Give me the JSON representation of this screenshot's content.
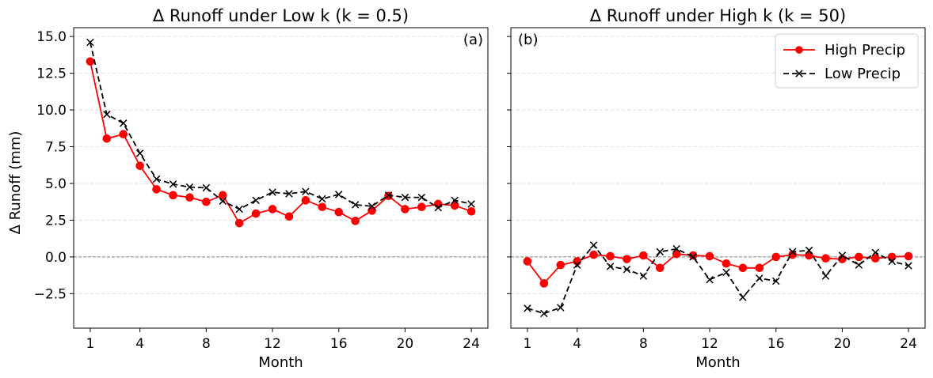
{
  "figure": {
    "shared_ylabel": "Δ Runoff (mm)"
  },
  "chart_data": [
    {
      "type": "line",
      "title": "Δ Runoff under Low k (k = 0.5)",
      "panel_label": "(a)",
      "xlabel": "Month",
      "ylabel": "Δ Runoff (mm)",
      "x": [
        1,
        2,
        3,
        4,
        5,
        6,
        7,
        8,
        9,
        10,
        11,
        12,
        13,
        14,
        15,
        16,
        17,
        18,
        19,
        20,
        21,
        22,
        23,
        24
      ],
      "xticks": [
        1,
        4,
        8,
        12,
        16,
        20,
        24
      ],
      "yticks": [
        -2.5,
        0.0,
        2.5,
        5.0,
        7.5,
        10.0,
        12.5,
        15.0
      ],
      "ytick_labels": [
        "−2.5",
        "0.0",
        "2.5",
        "5.0",
        "7.5",
        "10.0",
        "12.5",
        "15.0"
      ],
      "xlim": [
        0.0,
        25.0
      ],
      "ylim": [
        -4.85,
        15.6
      ],
      "grid": "y, dashed",
      "zero_line": true,
      "legend": null,
      "series": [
        {
          "name": "High Precip",
          "color": "#ff0000",
          "line_style": "solid",
          "marker": "circle",
          "values": [
            13.3,
            8.05,
            8.35,
            6.2,
            4.6,
            4.2,
            4.05,
            3.75,
            4.2,
            2.3,
            2.95,
            3.25,
            2.75,
            3.85,
            3.4,
            3.05,
            2.45,
            3.15,
            4.15,
            3.25,
            3.4,
            3.6,
            3.5,
            3.1
          ]
        },
        {
          "name": "Low Precip",
          "color": "#000000",
          "line_style": "dashed",
          "marker": "x",
          "values": [
            14.6,
            9.7,
            9.1,
            7.05,
            5.3,
            4.95,
            4.75,
            4.7,
            3.8,
            3.25,
            3.85,
            4.4,
            4.3,
            4.45,
            3.95,
            4.25,
            3.55,
            3.45,
            4.2,
            4.05,
            4.05,
            3.35,
            3.85,
            3.6
          ]
        }
      ]
    },
    {
      "type": "line",
      "title": "Δ Runoff under High k (k = 50)",
      "panel_label": "(b)",
      "xlabel": "Month",
      "ylabel": "",
      "x": [
        1,
        2,
        3,
        4,
        5,
        6,
        7,
        8,
        9,
        10,
        11,
        12,
        13,
        14,
        15,
        16,
        17,
        18,
        19,
        20,
        21,
        22,
        23,
        24
      ],
      "xticks": [
        1,
        4,
        8,
        12,
        16,
        20,
        24
      ],
      "yticks": [
        -2.5,
        0.0,
        2.5,
        5.0,
        7.5,
        10.0,
        12.5,
        15.0
      ],
      "ytick_labels": [],
      "xlim": [
        0.0,
        25.0
      ],
      "ylim": [
        -4.85,
        15.6
      ],
      "grid": "y, dashed",
      "zero_line": true,
      "legend": "top-right",
      "series": [
        {
          "name": "High Precip",
          "color": "#ff0000",
          "line_style": "solid",
          "marker": "circle",
          "values": [
            -0.3,
            -1.8,
            -0.55,
            -0.3,
            0.15,
            0.05,
            -0.15,
            0.1,
            -0.75,
            0.2,
            0.1,
            0.05,
            -0.45,
            -0.75,
            -0.75,
            0.0,
            0.15,
            0.1,
            -0.1,
            -0.15,
            0.0,
            -0.1,
            0.0,
            0.05
          ]
        },
        {
          "name": "Low Precip",
          "color": "#000000",
          "line_style": "dashed",
          "marker": "x",
          "values": [
            -3.5,
            -3.85,
            -3.45,
            -0.55,
            0.8,
            -0.65,
            -0.85,
            -1.3,
            0.35,
            0.55,
            0.0,
            -1.55,
            -1.05,
            -2.75,
            -1.45,
            -1.65,
            0.35,
            0.45,
            -1.3,
            0.1,
            -0.55,
            0.3,
            -0.3,
            -0.6
          ]
        }
      ]
    }
  ]
}
